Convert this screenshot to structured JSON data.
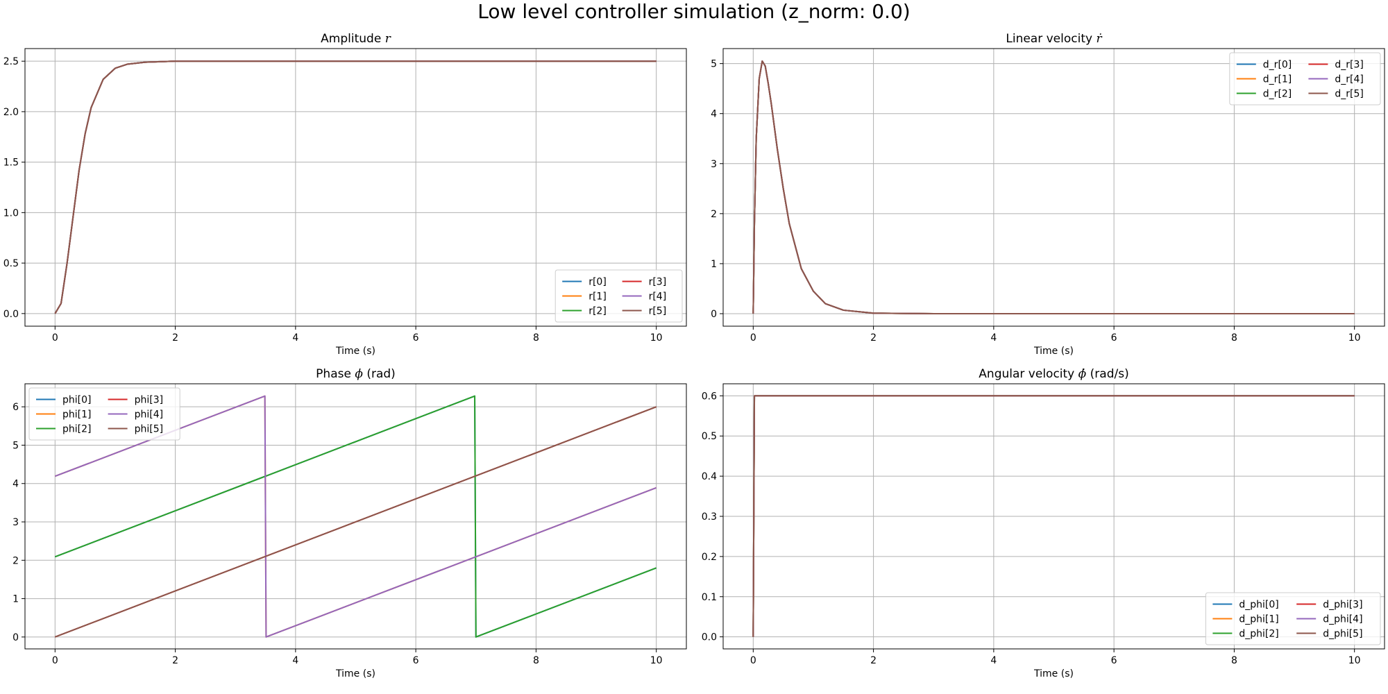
{
  "figure": {
    "title": "Low level controller simulation (z_norm: 0.0)"
  },
  "colors": {
    "C0": "#1f77b4",
    "C1": "#ff7f0e",
    "C2": "#2ca02c",
    "C3": "#d62728",
    "C4": "#9467bd",
    "C5": "#8c564b"
  },
  "chart_data": [
    {
      "id": "amplitude",
      "type": "line",
      "title": "Amplitude r",
      "title_text": "Amplitude ",
      "title_symbol": "r",
      "xlabel": "Time (s)",
      "ylabel": "",
      "xlim": [
        -0.5,
        10.5
      ],
      "ylim": [
        -0.125,
        2.625
      ],
      "xticks": [
        0,
        2,
        4,
        6,
        8,
        10
      ],
      "yticks": [
        0.0,
        0.5,
        1.0,
        1.5,
        2.0,
        2.5
      ],
      "ytick_labels": [
        "0.0",
        "0.5",
        "1.0",
        "1.5",
        "2.0",
        "2.5"
      ],
      "grid": true,
      "legend": {
        "placement": "lower right",
        "columns": 2
      },
      "series": [
        {
          "name": "r[0]",
          "x": [
            0,
            0.1,
            0.2,
            0.3,
            0.4,
            0.5,
            0.6,
            0.8,
            1.0,
            1.2,
            1.5,
            2.0,
            3.0,
            10.0
          ],
          "y": [
            0,
            0.1,
            0.5,
            0.96,
            1.42,
            1.78,
            2.04,
            2.32,
            2.43,
            2.47,
            2.49,
            2.5,
            2.5,
            2.5
          ]
        },
        {
          "name": "r[1]",
          "x": [
            0,
            0.1,
            0.2,
            0.3,
            0.4,
            0.5,
            0.6,
            0.8,
            1.0,
            1.2,
            1.5,
            2.0,
            3.0,
            10.0
          ],
          "y": [
            0,
            0.1,
            0.5,
            0.96,
            1.42,
            1.78,
            2.04,
            2.32,
            2.43,
            2.47,
            2.49,
            2.5,
            2.5,
            2.5
          ]
        },
        {
          "name": "r[2]",
          "x": [
            0,
            0.1,
            0.2,
            0.3,
            0.4,
            0.5,
            0.6,
            0.8,
            1.0,
            1.2,
            1.5,
            2.0,
            3.0,
            10.0
          ],
          "y": [
            0,
            0.1,
            0.5,
            0.96,
            1.42,
            1.78,
            2.04,
            2.32,
            2.43,
            2.47,
            2.49,
            2.5,
            2.5,
            2.5
          ]
        },
        {
          "name": "r[3]",
          "x": [
            0,
            0.1,
            0.2,
            0.3,
            0.4,
            0.5,
            0.6,
            0.8,
            1.0,
            1.2,
            1.5,
            2.0,
            3.0,
            10.0
          ],
          "y": [
            0,
            0.1,
            0.5,
            0.96,
            1.42,
            1.78,
            2.04,
            2.32,
            2.43,
            2.47,
            2.49,
            2.5,
            2.5,
            2.5
          ]
        },
        {
          "name": "r[4]",
          "x": [
            0,
            0.1,
            0.2,
            0.3,
            0.4,
            0.5,
            0.6,
            0.8,
            1.0,
            1.2,
            1.5,
            2.0,
            3.0,
            10.0
          ],
          "y": [
            0,
            0.1,
            0.5,
            0.96,
            1.42,
            1.78,
            2.04,
            2.32,
            2.43,
            2.47,
            2.49,
            2.5,
            2.5,
            2.5
          ]
        },
        {
          "name": "r[5]",
          "x": [
            0,
            0.1,
            0.2,
            0.3,
            0.4,
            0.5,
            0.6,
            0.8,
            1.0,
            1.2,
            1.5,
            2.0,
            3.0,
            10.0
          ],
          "y": [
            0,
            0.1,
            0.5,
            0.96,
            1.42,
            1.78,
            2.04,
            2.32,
            2.43,
            2.47,
            2.49,
            2.5,
            2.5,
            2.5
          ]
        }
      ]
    },
    {
      "id": "linear_velocity",
      "type": "line",
      "title": "Linear velocity ṙ",
      "title_text": "Linear velocity ",
      "title_symbol": "ṙ",
      "xlabel": "Time (s)",
      "ylabel": "",
      "xlim": [
        -0.5,
        10.5
      ],
      "ylim": [
        -0.25,
        5.3
      ],
      "xticks": [
        0,
        2,
        4,
        6,
        8,
        10
      ],
      "yticks": [
        0,
        1,
        2,
        3,
        4,
        5
      ],
      "ytick_labels": [
        "0",
        "1",
        "2",
        "3",
        "4",
        "5"
      ],
      "grid": true,
      "legend": {
        "placement": "upper right",
        "columns": 2
      },
      "series": [
        {
          "name": "d_r[0]",
          "x": [
            0,
            0.02,
            0.05,
            0.1,
            0.15,
            0.2,
            0.25,
            0.3,
            0.4,
            0.5,
            0.6,
            0.8,
            1.0,
            1.2,
            1.5,
            2.0,
            3.0,
            10.0
          ],
          "y": [
            0,
            1.8,
            3.5,
            4.7,
            5.05,
            4.95,
            4.6,
            4.2,
            3.3,
            2.5,
            1.8,
            0.9,
            0.45,
            0.2,
            0.07,
            0.01,
            0,
            0
          ]
        },
        {
          "name": "d_r[1]",
          "x": [
            0,
            0.02,
            0.05,
            0.1,
            0.15,
            0.2,
            0.25,
            0.3,
            0.4,
            0.5,
            0.6,
            0.8,
            1.0,
            1.2,
            1.5,
            2.0,
            3.0,
            10.0
          ],
          "y": [
            0,
            1.8,
            3.5,
            4.7,
            5.05,
            4.95,
            4.6,
            4.2,
            3.3,
            2.5,
            1.8,
            0.9,
            0.45,
            0.2,
            0.07,
            0.01,
            0,
            0
          ]
        },
        {
          "name": "d_r[2]",
          "x": [
            0,
            0.02,
            0.05,
            0.1,
            0.15,
            0.2,
            0.25,
            0.3,
            0.4,
            0.5,
            0.6,
            0.8,
            1.0,
            1.2,
            1.5,
            2.0,
            3.0,
            10.0
          ],
          "y": [
            0,
            1.8,
            3.5,
            4.7,
            5.05,
            4.95,
            4.6,
            4.2,
            3.3,
            2.5,
            1.8,
            0.9,
            0.45,
            0.2,
            0.07,
            0.01,
            0,
            0
          ]
        },
        {
          "name": "d_r[3]",
          "x": [
            0,
            0.02,
            0.05,
            0.1,
            0.15,
            0.2,
            0.25,
            0.3,
            0.4,
            0.5,
            0.6,
            0.8,
            1.0,
            1.2,
            1.5,
            2.0,
            3.0,
            10.0
          ],
          "y": [
            0,
            1.8,
            3.5,
            4.7,
            5.05,
            4.95,
            4.6,
            4.2,
            3.3,
            2.5,
            1.8,
            0.9,
            0.45,
            0.2,
            0.07,
            0.01,
            0,
            0
          ]
        },
        {
          "name": "d_r[4]",
          "x": [
            0,
            0.02,
            0.05,
            0.1,
            0.15,
            0.2,
            0.25,
            0.3,
            0.4,
            0.5,
            0.6,
            0.8,
            1.0,
            1.2,
            1.5,
            2.0,
            3.0,
            10.0
          ],
          "y": [
            0,
            1.8,
            3.5,
            4.7,
            5.05,
            4.95,
            4.6,
            4.2,
            3.3,
            2.5,
            1.8,
            0.9,
            0.45,
            0.2,
            0.07,
            0.01,
            0,
            0
          ]
        },
        {
          "name": "d_r[5]",
          "x": [
            0,
            0.02,
            0.05,
            0.1,
            0.15,
            0.2,
            0.25,
            0.3,
            0.4,
            0.5,
            0.6,
            0.8,
            1.0,
            1.2,
            1.5,
            2.0,
            3.0,
            10.0
          ],
          "y": [
            0,
            1.8,
            3.5,
            4.7,
            5.05,
            4.95,
            4.6,
            4.2,
            3.3,
            2.5,
            1.8,
            0.9,
            0.45,
            0.2,
            0.07,
            0.01,
            0,
            0
          ]
        }
      ]
    },
    {
      "id": "phase",
      "type": "line",
      "title": "Phase ϕ (rad)",
      "title_text": "Phase ",
      "title_symbol": "ϕ",
      "title_suffix": " (rad)",
      "xlabel": "Time (s)",
      "ylabel": "",
      "xlim": [
        -0.5,
        10.5
      ],
      "ylim": [
        -0.31,
        6.6
      ],
      "xticks": [
        0,
        2,
        4,
        6,
        8,
        10
      ],
      "yticks": [
        0,
        1,
        2,
        3,
        4,
        5,
        6
      ],
      "ytick_labels": [
        "0",
        "1",
        "2",
        "3",
        "4",
        "5",
        "6"
      ],
      "grid": true,
      "legend": {
        "placement": "upper left",
        "columns": 2
      },
      "series": [
        {
          "name": "phi[0]",
          "x": [
            0,
            6.98,
            7.0,
            10.0
          ],
          "y": [
            2.09,
            6.28,
            0,
            1.8
          ]
        },
        {
          "name": "phi[1]",
          "x": [
            0,
            3.49,
            3.51,
            10.0
          ],
          "y": [
            4.19,
            6.28,
            0,
            3.89
          ]
        },
        {
          "name": "phi[2]",
          "x": [
            0,
            6.98,
            7.0,
            10.0
          ],
          "y": [
            2.09,
            6.28,
            0,
            1.8
          ]
        },
        {
          "name": "phi[3]",
          "x": [
            0,
            10.0
          ],
          "y": [
            0,
            6.0
          ]
        },
        {
          "name": "phi[4]",
          "x": [
            0,
            3.49,
            3.51,
            10.0
          ],
          "y": [
            4.19,
            6.28,
            0,
            3.89
          ]
        },
        {
          "name": "phi[5]",
          "x": [
            0,
            10.0
          ],
          "y": [
            0,
            6.0
          ]
        }
      ]
    },
    {
      "id": "angular_velocity",
      "type": "line",
      "title": "Angular velocity ϕ̇ (rad/s)",
      "title_text": "Angular velocity ",
      "title_symbol": "ϕ̇",
      "title_suffix": " (rad/s)",
      "xlabel": "Time (s)",
      "ylabel": "",
      "xlim": [
        -0.5,
        10.5
      ],
      "ylim": [
        -0.03,
        0.63
      ],
      "xticks": [
        0,
        2,
        4,
        6,
        8,
        10
      ],
      "yticks": [
        0.0,
        0.1,
        0.2,
        0.3,
        0.4,
        0.5,
        0.6
      ],
      "ytick_labels": [
        "0.0",
        "0.1",
        "0.2",
        "0.3",
        "0.4",
        "0.5",
        "0.6"
      ],
      "grid": true,
      "legend": {
        "placement": "lower right",
        "columns": 2
      },
      "series": [
        {
          "name": "d_phi[0]",
          "x": [
            0,
            0.01,
            0.02,
            10.0
          ],
          "y": [
            0,
            0.3,
            0.6,
            0.6
          ]
        },
        {
          "name": "d_phi[1]",
          "x": [
            0,
            0.01,
            0.02,
            10.0
          ],
          "y": [
            0,
            0.3,
            0.6,
            0.6
          ]
        },
        {
          "name": "d_phi[2]",
          "x": [
            0,
            0.01,
            0.02,
            10.0
          ],
          "y": [
            0,
            0.3,
            0.6,
            0.6
          ]
        },
        {
          "name": "d_phi[3]",
          "x": [
            0,
            0.01,
            0.02,
            10.0
          ],
          "y": [
            0,
            0.3,
            0.6,
            0.6
          ]
        },
        {
          "name": "d_phi[4]",
          "x": [
            0,
            0.01,
            0.02,
            10.0
          ],
          "y": [
            0,
            0.3,
            0.6,
            0.6
          ]
        },
        {
          "name": "d_phi[5]",
          "x": [
            0,
            0.01,
            0.02,
            10.0
          ],
          "y": [
            0,
            0.3,
            0.6,
            0.6
          ]
        }
      ]
    }
  ]
}
